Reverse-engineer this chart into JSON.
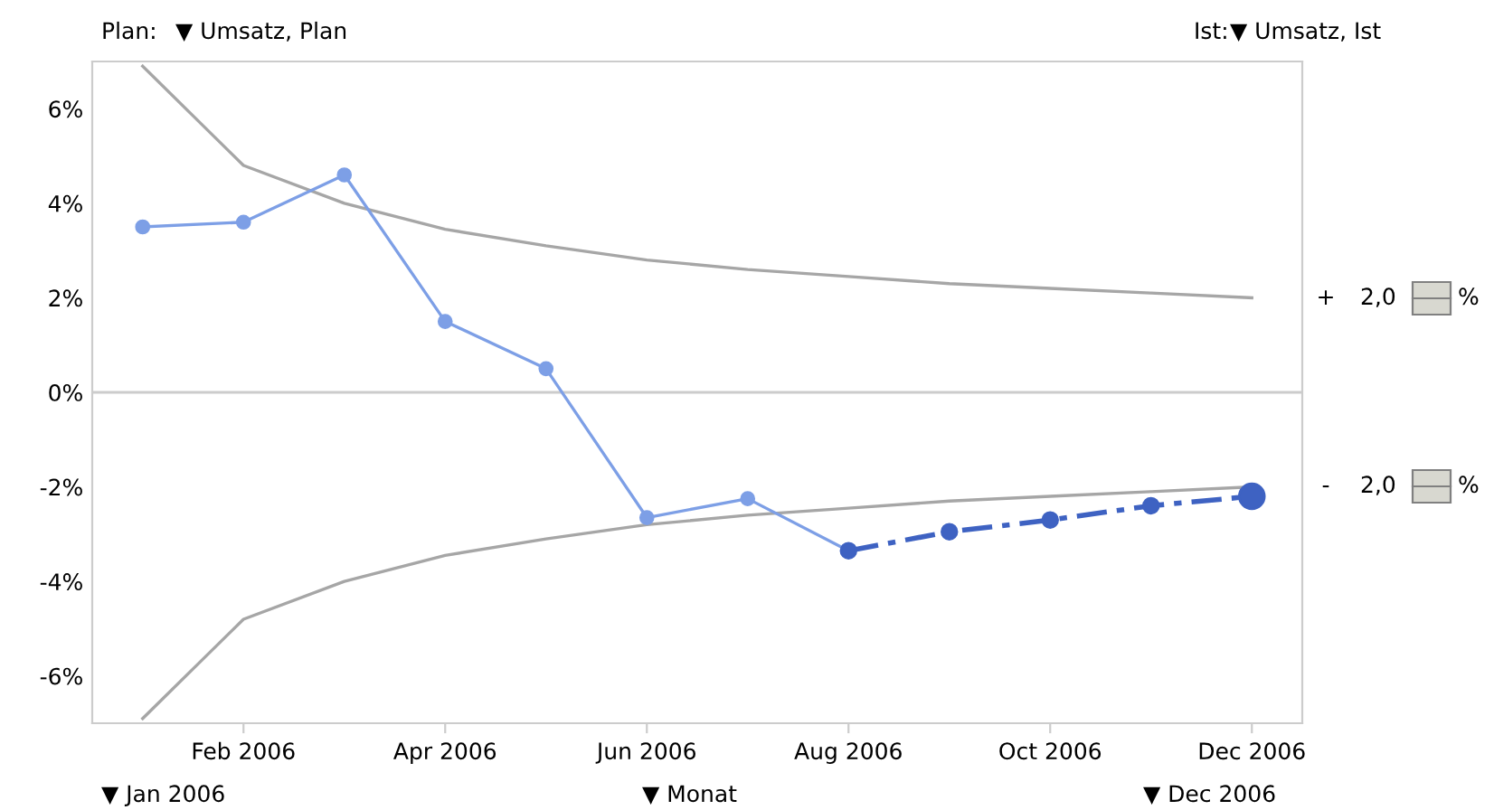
{
  "chart_data": {
    "type": "line",
    "categories": [
      null,
      "Feb 2006",
      null,
      "Apr 2006",
      null,
      "Jun 2006",
      null,
      "Aug 2006",
      null,
      "Oct 2006",
      null,
      "Dec 2006"
    ],
    "series": [
      {
        "color": "#a6a6a6",
        "marker": "none",
        "line_style": "solid",
        "values": [
          6.9,
          4.8,
          4.0,
          3.45,
          3.1,
          2.8,
          2.6,
          2.45,
          2.3,
          2.2,
          2.1,
          2.0
        ]
      },
      {
        "color": "#a6a6a6",
        "marker": "none",
        "line_style": "solid",
        "values": [
          -6.9,
          -4.8,
          -4.0,
          -3.45,
          -3.1,
          -2.8,
          -2.6,
          -2.45,
          -2.3,
          -2.2,
          -2.1,
          -2.0
        ]
      },
      {
        "color": "#7d9fe6",
        "marker": "circle",
        "line_style": "solid",
        "values": [
          3.5,
          3.6,
          4.6,
          1.5,
          0.5,
          -2.65,
          -2.25,
          -3.35,
          null,
          null,
          null,
          null
        ]
      },
      {
        "color": "#3e62c2",
        "marker": "circle",
        "line_style": "dashed",
        "values": [
          null,
          null,
          null,
          null,
          null,
          null,
          null,
          -3.35,
          -2.95,
          -2.7,
          -2.4,
          -2.2
        ]
      }
    ],
    "ylim": [
      -7,
      7
    ],
    "yticks": [
      {
        "value": -6,
        "label": "-6%"
      },
      {
        "value": -4,
        "label": "-4%"
      },
      {
        "value": -2,
        "label": "-2%"
      },
      {
        "value": 0,
        "label": "0%"
      },
      {
        "value": 2,
        "label": "2%"
      },
      {
        "value": 4,
        "label": "4%"
      },
      {
        "value": 6,
        "label": "6%"
      }
    ],
    "ref_lines": [
      {
        "axis": "y",
        "value": 0,
        "color": "#cccccc"
      }
    ],
    "grid": false,
    "legend": false,
    "annotations": [
      "Plan:",
      "▼ Umsatz, Plan",
      "Ist:",
      "▼ Umsatz, Ist",
      "▼ Jan 2006",
      "▼ Monat",
      "▼ Dec 2006",
      "+",
      "2,0",
      "%",
      "-",
      "2,0",
      "%"
    ]
  }
}
